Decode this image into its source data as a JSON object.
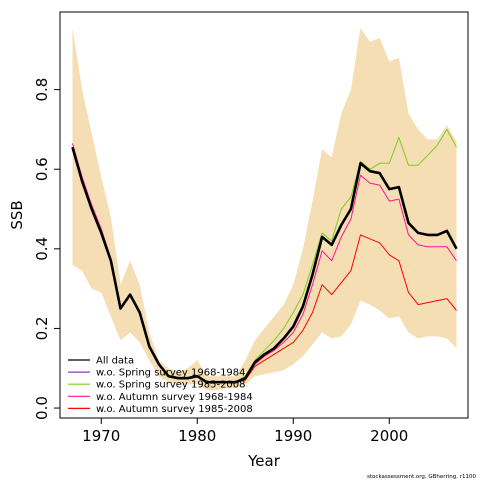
{
  "chart_data": {
    "type": "area",
    "xlabel": "Year",
    "ylabel": "SSB",
    "xlim": [
      1965.7,
      2008.2
    ],
    "ylim": [
      -0.025,
      0.995
    ],
    "x_ticks": [
      1970,
      1980,
      1990,
      2000
    ],
    "y_ticks": [
      0.0,
      0.2,
      0.4,
      0.6,
      0.8
    ],
    "y_tick_labels": [
      "0.0",
      "0.2",
      "0.4",
      "0.6",
      "0.8"
    ],
    "grid": false,
    "legend_position": "bottom-left",
    "footer": "stockassessment.org, GBherring, r1100",
    "band_color": "#f5deb3",
    "years": [
      1967,
      1968,
      1969,
      1970,
      1971,
      1972,
      1973,
      1974,
      1975,
      1976,
      1977,
      1978,
      1979,
      1980,
      1981,
      1982,
      1983,
      1984,
      1985,
      1986,
      1987,
      1988,
      1989,
      1990,
      1991,
      1992,
      1993,
      1994,
      1995,
      1996,
      1997,
      1998,
      1999,
      2000,
      2001,
      2002,
      2003,
      2004,
      2005,
      2006,
      2007
    ],
    "confidence_band": {
      "upper": [
        0.955,
        0.8,
        0.69,
        0.58,
        0.48,
        0.31,
        0.37,
        0.31,
        0.19,
        0.12,
        0.1,
        0.09,
        0.1,
        0.12,
        0.08,
        0.08,
        0.08,
        0.08,
        0.12,
        0.17,
        0.2,
        0.23,
        0.26,
        0.31,
        0.4,
        0.52,
        0.65,
        0.63,
        0.74,
        0.8,
        0.955,
        0.92,
        0.93,
        0.87,
        0.88,
        0.74,
        0.7,
        0.675,
        0.675,
        0.71,
        0.67
      ],
      "lower": [
        0.36,
        0.345,
        0.3,
        0.29,
        0.23,
        0.17,
        0.19,
        0.165,
        0.12,
        0.08,
        0.065,
        0.06,
        0.06,
        0.06,
        0.045,
        0.045,
        0.05,
        0.05,
        0.06,
        0.08,
        0.085,
        0.09,
        0.095,
        0.11,
        0.13,
        0.16,
        0.19,
        0.175,
        0.18,
        0.21,
        0.27,
        0.26,
        0.245,
        0.225,
        0.23,
        0.19,
        0.175,
        0.18,
        0.18,
        0.175,
        0.15
      ]
    },
    "series": [
      {
        "name": "All data",
        "color": "#000000",
        "values": [
          0.655,
          0.57,
          0.5,
          0.44,
          0.37,
          0.25,
          0.285,
          0.24,
          0.155,
          0.11,
          0.08,
          0.075,
          0.075,
          0.08,
          0.065,
          0.065,
          0.065,
          0.065,
          0.075,
          0.115,
          0.135,
          0.15,
          0.175,
          0.205,
          0.255,
          0.335,
          0.43,
          0.41,
          0.46,
          0.5,
          0.615,
          0.595,
          0.59,
          0.55,
          0.555,
          0.465,
          0.44,
          0.435,
          0.435,
          0.445,
          0.4
        ]
      },
      {
        "name": "w.o. Spring survey 1968-1984",
        "color": "#9932cc",
        "values": [
          0.655,
          0.57,
          0.5,
          0.44,
          0.37,
          0.25,
          0.285,
          0.24,
          0.155,
          0.11,
          0.08,
          0.075,
          0.075,
          0.08,
          0.065,
          0.065,
          0.065,
          0.065,
          0.075,
          0.115,
          0.135,
          0.15,
          0.175,
          0.205,
          0.255,
          0.335,
          0.43,
          0.41,
          0.46,
          0.5,
          0.615,
          0.595,
          0.59,
          0.55,
          0.555,
          0.465,
          0.44,
          0.435,
          0.435,
          0.445,
          0.4
        ]
      },
      {
        "name": "w.o. Spring survey 1985-2008",
        "color": "#7ccd1c",
        "values": [
          0.655,
          0.57,
          0.5,
          0.44,
          0.37,
          0.25,
          0.285,
          0.24,
          0.155,
          0.11,
          0.08,
          0.075,
          0.075,
          0.08,
          0.065,
          0.065,
          0.065,
          0.065,
          0.08,
          0.12,
          0.145,
          0.17,
          0.2,
          0.24,
          0.285,
          0.36,
          0.44,
          0.42,
          0.5,
          0.53,
          0.62,
          0.6,
          0.615,
          0.615,
          0.68,
          0.61,
          0.61,
          0.635,
          0.66,
          0.7,
          0.655
        ]
      },
      {
        "name": "w.o. Autumn survey 1968-1984",
        "color": "#ff1493",
        "values": [
          0.665,
          0.58,
          0.51,
          0.45,
          0.375,
          0.25,
          0.285,
          0.24,
          0.155,
          0.11,
          0.08,
          0.075,
          0.075,
          0.08,
          0.065,
          0.065,
          0.065,
          0.065,
          0.075,
          0.11,
          0.13,
          0.145,
          0.165,
          0.19,
          0.235,
          0.31,
          0.395,
          0.37,
          0.43,
          0.475,
          0.585,
          0.565,
          0.56,
          0.52,
          0.525,
          0.435,
          0.41,
          0.405,
          0.405,
          0.405,
          0.37
        ]
      },
      {
        "name": "w.o. Autumn survey 1985-2008",
        "color": "#ff0000",
        "values": [
          0.655,
          0.57,
          0.5,
          0.44,
          0.37,
          0.25,
          0.285,
          0.24,
          0.155,
          0.11,
          0.08,
          0.075,
          0.075,
          0.08,
          0.065,
          0.065,
          0.065,
          0.065,
          0.07,
          0.105,
          0.12,
          0.135,
          0.15,
          0.165,
          0.195,
          0.24,
          0.31,
          0.285,
          0.315,
          0.345,
          0.435,
          0.425,
          0.415,
          0.385,
          0.37,
          0.29,
          0.26,
          0.265,
          0.27,
          0.275,
          0.245
        ]
      }
    ]
  }
}
